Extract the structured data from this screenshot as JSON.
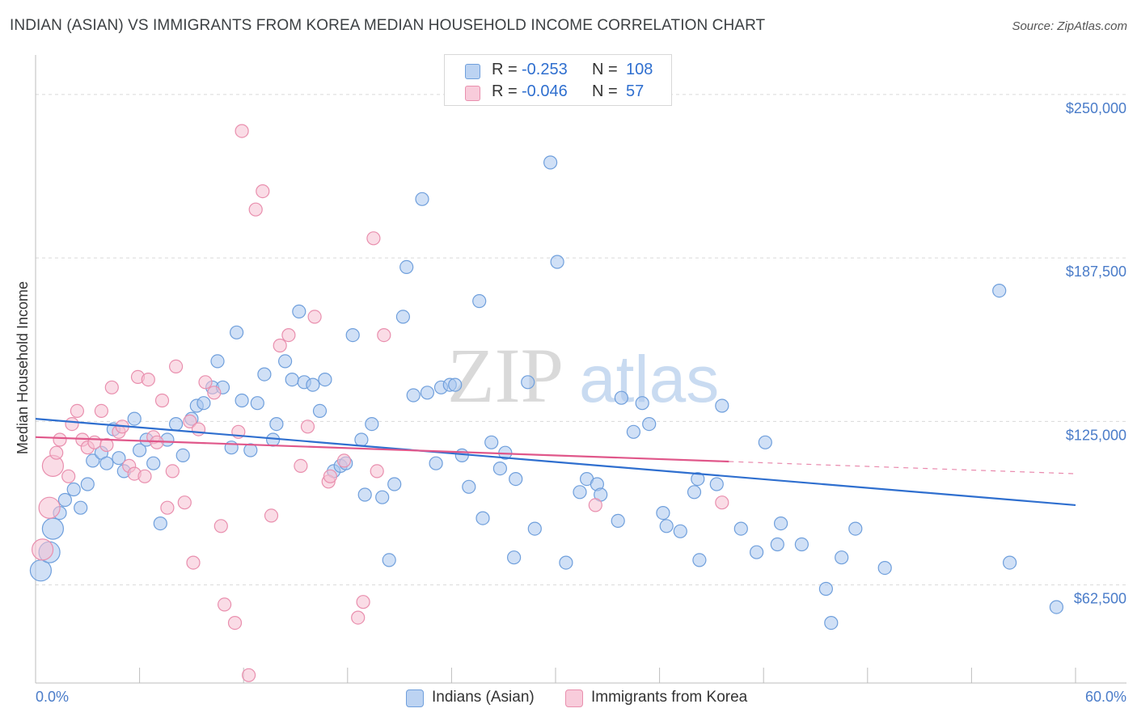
{
  "header": {
    "title": "INDIAN (ASIAN) VS IMMIGRANTS FROM KOREA MEDIAN HOUSEHOLD INCOME CORRELATION CHART",
    "source": "Source: ZipAtlas.com"
  },
  "watermark": {
    "text_zip": "ZIP",
    "text_atlas": "atlas"
  },
  "legend_top": {
    "rows": [
      {
        "r_label": "R =",
        "r_value": "-0.253",
        "n_label": "N =",
        "n_value": "108"
      },
      {
        "r_label": "R =",
        "r_value": "-0.046",
        "n_label": "N =",
        "n_value": "57"
      }
    ]
  },
  "legend_bottom": {
    "items": [
      {
        "label": "Indians (Asian)"
      },
      {
        "label": "Immigrants from Korea"
      }
    ]
  },
  "colors": {
    "blue_fill": "#a9c7ef",
    "blue_stroke": "#6f9fdc",
    "blue_line": "#2f6fcf",
    "pink_fill": "#f6bfd1",
    "pink_stroke": "#e98fae",
    "pink_line": "#e0578a",
    "grid": "#d9d9d9",
    "tick_label": "#4a7cc9"
  },
  "chart_data": {
    "type": "scatter",
    "title": "INDIAN (ASIAN) VS IMMIGRANTS FROM KOREA MEDIAN HOUSEHOLD INCOME CORRELATION CHART",
    "xlabel": "",
    "ylabel": "Median Household Income",
    "xlim": [
      0,
      60
    ],
    "ylim": [
      25000,
      262000
    ],
    "x_tick_labels": [
      "0.0%",
      "60.0%"
    ],
    "y_ticks": [
      62500,
      125000,
      187500,
      250000
    ],
    "y_tick_labels": [
      "$62,500",
      "$125,000",
      "$187,500",
      "$250,000"
    ],
    "grid": true,
    "legend_placement": "top-center",
    "series": [
      {
        "name": "Indians (Asian)",
        "color": "#6f9fdc",
        "r": -0.253,
        "n": 108,
        "trend": {
          "x": [
            0,
            60
          ],
          "y": [
            126000,
            93000
          ],
          "dashed_from": null
        },
        "points": [
          [
            0.3,
            68000
          ],
          [
            0.8,
            75000
          ],
          [
            1.0,
            84000
          ],
          [
            1.4,
            90000
          ],
          [
            1.7,
            95000
          ],
          [
            2.2,
            99000
          ],
          [
            2.6,
            92000
          ],
          [
            3.0,
            101000
          ],
          [
            3.3,
            110000
          ],
          [
            3.8,
            113000
          ],
          [
            4.1,
            109000
          ],
          [
            4.5,
            122000
          ],
          [
            4.8,
            111000
          ],
          [
            5.1,
            106000
          ],
          [
            5.7,
            126000
          ],
          [
            6.0,
            114000
          ],
          [
            6.4,
            118000
          ],
          [
            6.8,
            109000
          ],
          [
            7.2,
            86000
          ],
          [
            7.6,
            118000
          ],
          [
            8.1,
            124000
          ],
          [
            8.5,
            112000
          ],
          [
            9.0,
            126000
          ],
          [
            9.3,
            131000
          ],
          [
            9.7,
            132000
          ],
          [
            10.2,
            138000
          ],
          [
            10.5,
            148000
          ],
          [
            10.8,
            138000
          ],
          [
            11.3,
            115000
          ],
          [
            11.6,
            159000
          ],
          [
            11.9,
            133000
          ],
          [
            12.4,
            114000
          ],
          [
            12.8,
            132000
          ],
          [
            13.2,
            143000
          ],
          [
            13.7,
            118000
          ],
          [
            13.9,
            124000
          ],
          [
            14.4,
            148000
          ],
          [
            14.8,
            141000
          ],
          [
            15.2,
            167000
          ],
          [
            15.5,
            140000
          ],
          [
            16.0,
            139000
          ],
          [
            16.4,
            129000
          ],
          [
            16.7,
            141000
          ],
          [
            17.2,
            106000
          ],
          [
            17.6,
            108000
          ],
          [
            17.9,
            109000
          ],
          [
            18.3,
            158000
          ],
          [
            18.8,
            118000
          ],
          [
            19.0,
            97000
          ],
          [
            19.4,
            124000
          ],
          [
            20.0,
            96000
          ],
          [
            20.4,
            72000
          ],
          [
            20.7,
            101000
          ],
          [
            21.2,
            165000
          ],
          [
            21.4,
            184000
          ],
          [
            21.8,
            135000
          ],
          [
            22.3,
            210000
          ],
          [
            22.6,
            136000
          ],
          [
            23.1,
            109000
          ],
          [
            23.4,
            138000
          ],
          [
            23.9,
            139000
          ],
          [
            24.2,
            139000
          ],
          [
            24.6,
            112000
          ],
          [
            25.0,
            100000
          ],
          [
            25.6,
            171000
          ],
          [
            25.8,
            88000
          ],
          [
            26.3,
            117000
          ],
          [
            26.8,
            107000
          ],
          [
            27.1,
            113000
          ],
          [
            27.6,
            73000
          ],
          [
            27.7,
            103000
          ],
          [
            28.4,
            140000
          ],
          [
            28.8,
            84000
          ],
          [
            29.7,
            224000
          ],
          [
            30.1,
            186000
          ],
          [
            30.6,
            71000
          ],
          [
            31.4,
            98000
          ],
          [
            31.8,
            103000
          ],
          [
            32.4,
            101000
          ],
          [
            32.6,
            97000
          ],
          [
            33.6,
            87000
          ],
          [
            33.8,
            134000
          ],
          [
            34.5,
            121000
          ],
          [
            35.0,
            132000
          ],
          [
            35.4,
            124000
          ],
          [
            36.2,
            90000
          ],
          [
            36.4,
            85000
          ],
          [
            37.2,
            83000
          ],
          [
            38.0,
            98000
          ],
          [
            38.2,
            103000
          ],
          [
            38.3,
            72000
          ],
          [
            39.3,
            101000
          ],
          [
            39.6,
            131000
          ],
          [
            40.7,
            84000
          ],
          [
            41.6,
            75000
          ],
          [
            42.1,
            117000
          ],
          [
            42.8,
            78000
          ],
          [
            43.0,
            86000
          ],
          [
            44.2,
            78000
          ],
          [
            45.6,
            61000
          ],
          [
            45.9,
            48000
          ],
          [
            46.5,
            73000
          ],
          [
            47.3,
            84000
          ],
          [
            49.0,
            69000
          ],
          [
            55.6,
            175000
          ],
          [
            56.2,
            71000
          ],
          [
            58.9,
            54000
          ]
        ]
      },
      {
        "name": "Immigrants from Korea",
        "color": "#e98fae",
        "r": -0.046,
        "n": 57,
        "trend": {
          "x": [
            0,
            60
          ],
          "y": [
            119000,
            105000
          ],
          "dashed_from": 40
        },
        "points": [
          [
            0.4,
            76000
          ],
          [
            0.8,
            92000
          ],
          [
            1.0,
            108000
          ],
          [
            1.2,
            113000
          ],
          [
            1.4,
            118000
          ],
          [
            1.9,
            104000
          ],
          [
            2.1,
            124000
          ],
          [
            2.4,
            129000
          ],
          [
            2.7,
            118000
          ],
          [
            3.0,
            115000
          ],
          [
            3.4,
            117000
          ],
          [
            3.8,
            129000
          ],
          [
            4.1,
            116000
          ],
          [
            4.4,
            138000
          ],
          [
            4.8,
            121000
          ],
          [
            5.0,
            123000
          ],
          [
            5.4,
            108000
          ],
          [
            5.7,
            105000
          ],
          [
            5.9,
            142000
          ],
          [
            6.3,
            104000
          ],
          [
            6.5,
            141000
          ],
          [
            6.8,
            119000
          ],
          [
            7.0,
            117000
          ],
          [
            7.3,
            133000
          ],
          [
            7.6,
            92000
          ],
          [
            7.9,
            106000
          ],
          [
            8.1,
            146000
          ],
          [
            8.6,
            94000
          ],
          [
            8.9,
            125000
          ],
          [
            9.1,
            71000
          ],
          [
            9.4,
            122000
          ],
          [
            9.8,
            140000
          ],
          [
            10.3,
            136000
          ],
          [
            10.7,
            85000
          ],
          [
            10.9,
            55000
          ],
          [
            11.5,
            48000
          ],
          [
            11.7,
            121000
          ],
          [
            11.9,
            236000
          ],
          [
            12.3,
            28000
          ],
          [
            12.7,
            206000
          ],
          [
            13.1,
            213000
          ],
          [
            13.6,
            89000
          ],
          [
            14.1,
            154000
          ],
          [
            14.6,
            158000
          ],
          [
            15.3,
            108000
          ],
          [
            15.7,
            123000
          ],
          [
            16.1,
            165000
          ],
          [
            16.9,
            102000
          ],
          [
            17.0,
            104000
          ],
          [
            17.8,
            110000
          ],
          [
            18.6,
            50000
          ],
          [
            18.9,
            56000
          ],
          [
            19.5,
            195000
          ],
          [
            19.7,
            106000
          ],
          [
            20.1,
            158000
          ],
          [
            32.3,
            93000
          ],
          [
            39.6,
            94000
          ]
        ]
      }
    ]
  }
}
